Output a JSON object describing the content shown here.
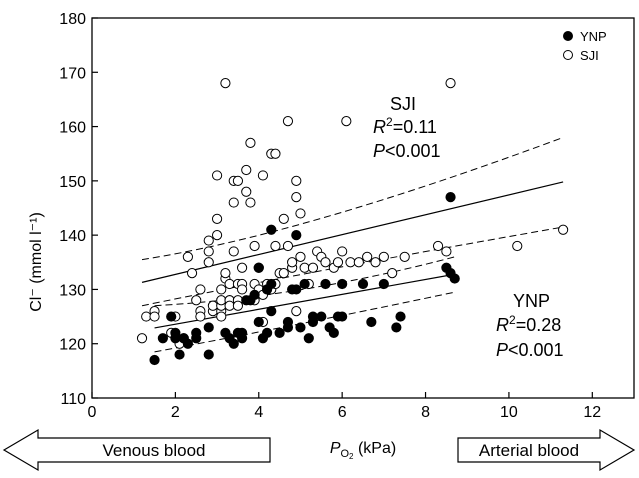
{
  "chart_data": {
    "type": "scatter",
    "xlim": [
      0,
      13
    ],
    "ylim": [
      110,
      180
    ],
    "x_ticks": [
      0,
      2,
      4,
      6,
      8,
      10,
      12
    ],
    "y_ticks": [
      110,
      120,
      130,
      140,
      150,
      160,
      170,
      180
    ],
    "xlabel": {
      "main": "P",
      "sub": "O",
      "sub2": "2",
      "unit": " (kPa)"
    },
    "ylabel": "Cl⁻ (mmol l⁻¹)",
    "legend": {
      "position": "top-right",
      "entries": [
        "YNP",
        "SJI"
      ]
    },
    "series": [
      {
        "name": "YNP",
        "marker": "filled-circle",
        "points": [
          [
            1.5,
            117
          ],
          [
            1.7,
            121
          ],
          [
            1.9,
            125
          ],
          [
            2.0,
            121
          ],
          [
            2.0,
            122
          ],
          [
            2.1,
            118
          ],
          [
            2.2,
            121
          ],
          [
            2.3,
            120
          ],
          [
            2.5,
            121
          ],
          [
            2.5,
            122
          ],
          [
            2.8,
            118
          ],
          [
            2.8,
            123
          ],
          [
            3.2,
            122
          ],
          [
            3.3,
            121
          ],
          [
            3.4,
            120
          ],
          [
            3.5,
            122
          ],
          [
            3.6,
            121
          ],
          [
            3.6,
            122
          ],
          [
            3.7,
            128
          ],
          [
            3.8,
            128
          ],
          [
            3.9,
            129
          ],
          [
            4.0,
            124
          ],
          [
            4.0,
            134
          ],
          [
            4.1,
            121
          ],
          [
            4.2,
            122
          ],
          [
            4.2,
            130
          ],
          [
            4.3,
            126
          ],
          [
            4.3,
            131
          ],
          [
            4.3,
            141
          ],
          [
            4.5,
            122
          ],
          [
            4.7,
            124
          ],
          [
            4.7,
            123
          ],
          [
            4.8,
            130
          ],
          [
            4.9,
            140
          ],
          [
            4.9,
            130
          ],
          [
            5.0,
            123
          ],
          [
            5.1,
            131
          ],
          [
            5.2,
            121
          ],
          [
            5.3,
            124
          ],
          [
            5.3,
            125
          ],
          [
            5.5,
            125
          ],
          [
            5.6,
            131
          ],
          [
            5.7,
            123
          ],
          [
            5.8,
            122
          ],
          [
            5.9,
            125
          ],
          [
            6.0,
            125
          ],
          [
            6.0,
            131
          ],
          [
            6.5,
            131
          ],
          [
            6.7,
            124
          ],
          [
            7.0,
            131
          ],
          [
            7.3,
            123
          ],
          [
            7.4,
            125
          ],
          [
            8.5,
            134
          ],
          [
            8.6,
            133
          ],
          [
            8.6,
            147
          ],
          [
            8.7,
            132
          ]
        ],
        "fit": {
          "line": [
            [
              1.5,
              122.9
            ],
            [
              8.7,
              132.8
            ]
          ],
          "ci_upper": [
            [
              1.5,
              127
            ],
            [
              5.0,
              128.5
            ],
            [
              8.7,
              136
            ]
          ],
          "ci_lower": [
            [
              1.5,
              118.5
            ],
            [
              5.0,
              123.5
            ],
            [
              8.7,
              129.5
            ]
          ]
        }
      },
      {
        "name": "SJI",
        "marker": "open-circle",
        "points": [
          [
            1.2,
            121
          ],
          [
            1.3,
            125
          ],
          [
            1.5,
            126
          ],
          [
            1.5,
            125
          ],
          [
            1.9,
            122
          ],
          [
            2.0,
            125
          ],
          [
            2.1,
            120
          ],
          [
            2.2,
            121
          ],
          [
            2.3,
            136
          ],
          [
            2.4,
            133
          ],
          [
            2.5,
            128
          ],
          [
            2.6,
            126
          ],
          [
            2.6,
            125
          ],
          [
            2.6,
            130
          ],
          [
            2.8,
            139
          ],
          [
            2.8,
            135
          ],
          [
            2.8,
            137
          ],
          [
            2.9,
            126
          ],
          [
            2.9,
            127
          ],
          [
            3.0,
            151
          ],
          [
            3.0,
            143
          ],
          [
            3.0,
            140
          ],
          [
            3.1,
            126
          ],
          [
            3.1,
            127
          ],
          [
            3.1,
            128
          ],
          [
            3.1,
            130
          ],
          [
            3.1,
            125
          ],
          [
            3.2,
            168
          ],
          [
            3.2,
            132
          ],
          [
            3.2,
            133
          ],
          [
            3.3,
            128
          ],
          [
            3.3,
            131
          ],
          [
            3.3,
            128
          ],
          [
            3.3,
            127
          ],
          [
            3.4,
            137
          ],
          [
            3.4,
            146
          ],
          [
            3.4,
            150
          ],
          [
            3.5,
            150
          ],
          [
            3.5,
            128
          ],
          [
            3.5,
            131
          ],
          [
            3.5,
            127
          ],
          [
            3.6,
            134
          ],
          [
            3.6,
            131
          ],
          [
            3.6,
            130
          ],
          [
            3.7,
            152
          ],
          [
            3.7,
            148
          ],
          [
            3.8,
            157
          ],
          [
            3.8,
            146
          ],
          [
            3.9,
            128
          ],
          [
            3.9,
            138
          ],
          [
            3.9,
            131
          ],
          [
            4.0,
            134
          ],
          [
            4.0,
            130
          ],
          [
            4.1,
            129
          ],
          [
            4.1,
            124
          ],
          [
            4.1,
            151
          ],
          [
            4.2,
            131
          ],
          [
            4.2,
            130
          ],
          [
            4.3,
            155
          ],
          [
            4.3,
            130
          ],
          [
            4.4,
            155
          ],
          [
            4.4,
            138
          ],
          [
            4.4,
            131
          ],
          [
            4.5,
            133
          ],
          [
            4.6,
            133
          ],
          [
            4.6,
            143
          ],
          [
            4.7,
            161
          ],
          [
            4.7,
            138
          ],
          [
            4.8,
            134
          ],
          [
            4.8,
            135
          ],
          [
            4.9,
            147
          ],
          [
            4.9,
            150
          ],
          [
            4.9,
            126
          ],
          [
            5.0,
            144
          ],
          [
            5.0,
            136
          ],
          [
            5.1,
            134
          ],
          [
            5.2,
            131
          ],
          [
            5.3,
            134
          ],
          [
            5.4,
            137
          ],
          [
            5.5,
            136
          ],
          [
            5.6,
            135
          ],
          [
            5.8,
            134
          ],
          [
            5.9,
            135
          ],
          [
            6.0,
            137
          ],
          [
            6.1,
            161
          ],
          [
            6.2,
            135
          ],
          [
            6.4,
            135
          ],
          [
            6.6,
            136
          ],
          [
            6.8,
            135
          ],
          [
            7.0,
            136
          ],
          [
            7.2,
            133
          ],
          [
            7.5,
            136
          ],
          [
            8.3,
            138
          ],
          [
            8.5,
            137
          ],
          [
            8.6,
            168
          ],
          [
            10.2,
            138
          ],
          [
            11.3,
            141
          ]
        ],
        "fit": {
          "line": [
            [
              1.2,
              131.3
            ],
            [
              11.3,
              149.8
            ]
          ],
          "ci_upper": [
            [
              1.2,
              135.5
            ],
            [
              5.0,
              140
            ],
            [
              11.3,
              158
            ]
          ],
          "ci_lower": [
            [
              1.2,
              127
            ],
            [
              5.0,
              133
            ],
            [
              11.3,
              141.5
            ]
          ]
        }
      }
    ],
    "annotations": [
      {
        "name": "SJI",
        "label": "SJI",
        "r2": "=0.11",
        "p": "<0.001"
      },
      {
        "name": "YNP",
        "label": "YNP",
        "r2": "=0.28",
        "p": "<0.001"
      }
    ],
    "arrows": {
      "left": "Venous blood",
      "right": "Arterial blood"
    }
  }
}
